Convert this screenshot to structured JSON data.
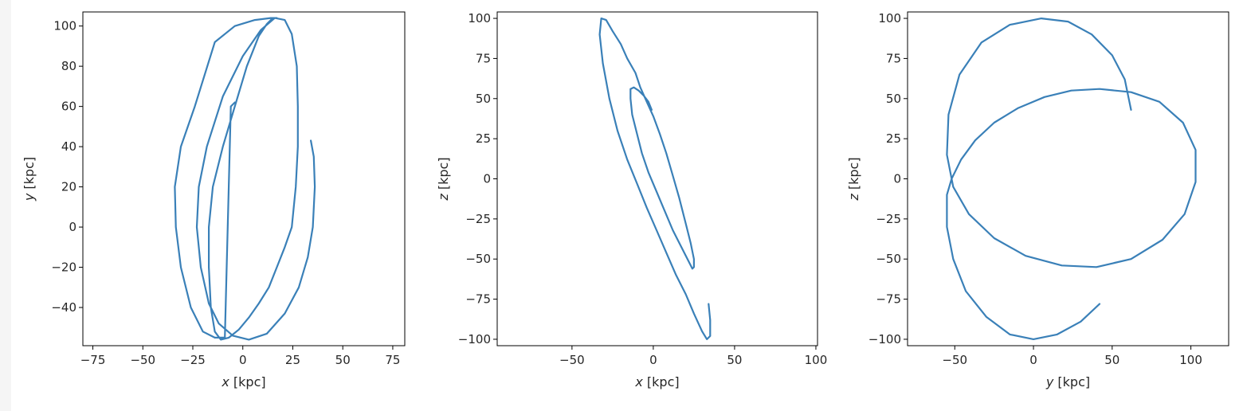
{
  "figure": {
    "chart_data": [
      {
        "type": "line",
        "id": "panel-xy",
        "xlabel_var": "x",
        "xlabel_unit": "[kpc]",
        "ylabel_var": "y",
        "ylabel_unit": "[kpc]",
        "xlim": [
          -80,
          81
        ],
        "ylim": [
          -59,
          107
        ],
        "xticks": [
          -75,
          -50,
          -25,
          0,
          25,
          50,
          75
        ],
        "yticks": [
          -40,
          -20,
          0,
          20,
          40,
          60,
          80,
          100
        ],
        "xtick_labels": [
          "−75",
          "−50",
          "−25",
          "0",
          "25",
          "50",
          "75"
        ],
        "ytick_labels": [
          "−40",
          "−20",
          "0",
          "20",
          "40",
          "60",
          "80",
          "100"
        ],
        "grid": false,
        "series": [
          {
            "color": "#3a80b8",
            "x": [
              34,
              35.5,
              36,
              35,
              32.5,
              28,
              21,
              12,
              3,
              -5,
              -12,
              -17,
              -21,
              -23,
              -22,
              -18,
              -10,
              0,
              9,
              16,
              21,
              24.5,
              27,
              27.5,
              27.5,
              26.5,
              24.5,
              21,
              17,
              13,
              8,
              3,
              -2,
              -7,
              -11,
              -14,
              -16,
              -17,
              -17,
              -15,
              -10,
              -4,
              2,
              8,
              12,
              15,
              17,
              14,
              6,
              -4,
              -14,
              -24,
              -31,
              -34,
              -33.5,
              -31,
              -26,
              -20,
              -14,
              -9,
              -6,
              -4
            ],
            "y": [
              43,
              35,
              20,
              0,
              -15,
              -30,
              -43,
              -53,
              -56,
              -54,
              -48,
              -38,
              -20,
              0,
              20,
              40,
              65,
              85,
              98,
              104,
              103,
              96,
              80,
              60,
              40,
              20,
              0,
              -10,
              -20,
              -30,
              -38,
              -45,
              -51,
              -55,
              -56,
              -52,
              -40,
              -20,
              0,
              20,
              40,
              60,
              80,
              95,
              101,
              104,
              104,
              104,
              103,
              100,
              92,
              60,
              40,
              20,
              0,
              -20,
              -40,
              -52,
              -55,
              -55,
              60,
              62
            ]
          }
        ]
      },
      {
        "type": "line",
        "id": "panel-xz",
        "xlabel_var": "x",
        "xlabel_unit": "[kpc]",
        "ylabel_var": "z",
        "ylabel_unit": "[kpc]",
        "xlim": [
          -96,
          101
        ],
        "ylim": [
          -104,
          104
        ],
        "xticks": [
          -50,
          0,
          50,
          100
        ],
        "yticks": [
          -100,
          -75,
          -50,
          -25,
          0,
          25,
          50,
          75,
          100
        ],
        "xtick_labels": [
          "−50",
          "0",
          "50",
          "100"
        ],
        "ytick_labels": [
          "−100",
          "−75",
          "−50",
          "−25",
          "0",
          "25",
          "50",
          "75",
          "100"
        ],
        "grid": false,
        "series": [
          {
            "color": "#3a80b8",
            "x": [
              34,
              35,
              35,
              33,
              30,
              25,
              20,
              14,
              8,
              2,
              -4,
              -10,
              -16,
              -22,
              -27,
              -31,
              -33,
              -32,
              -29,
              -25,
              -20,
              -16,
              -11,
              -8,
              -4,
              0,
              4,
              8,
              12,
              16,
              20,
              23,
              25,
              25,
              24,
              21,
              17,
              12,
              7,
              2,
              -3,
              -7,
              -10,
              -13,
              -14,
              -14,
              -12,
              -9,
              -6,
              -3,
              -1
            ],
            "y": [
              -78,
              -88,
              -98,
              -100,
              -95,
              -84,
              -72,
              -60,
              -46,
              -32,
              -18,
              -3,
              12,
              30,
              50,
              72,
              90,
              100,
              99,
              92,
              84,
              75,
              66,
              57,
              48,
              39,
              28,
              16,
              2,
              -12,
              -28,
              -40,
              -50,
              -55,
              -56,
              -50,
              -42,
              -32,
              -20,
              -8,
              4,
              16,
              28,
              40,
              50,
              56,
              57,
              55,
              52,
              48,
              43
            ]
          }
        ]
      },
      {
        "type": "line",
        "id": "panel-yz",
        "xlabel_var": "y",
        "xlabel_unit": "[kpc]",
        "ylabel_var": "z",
        "ylabel_unit": "[kpc]",
        "xlim": [
          -80,
          124
        ],
        "ylim": [
          -104,
          104
        ],
        "xticks": [
          -50,
          0,
          50,
          100
        ],
        "yticks": [
          -100,
          -75,
          -50,
          -25,
          0,
          25,
          50,
          75,
          100
        ],
        "xtick_labels": [
          "−50",
          "0",
          "50",
          "100"
        ],
        "ytick_labels": [
          "−100",
          "−75",
          "−50",
          "−25",
          "0",
          "25",
          "50",
          "75",
          "100"
        ],
        "grid": false,
        "series": [
          {
            "color": "#3a80b8",
            "x": [
              42,
              30,
              15,
              0,
              -15,
              -30,
              -43,
              -51,
              -55,
              -55,
              -52,
              -46,
              -37,
              -25,
              -10,
              7,
              24,
              42,
              62,
              80,
              95,
              103,
              103,
              96,
              82,
              62,
              40,
              18,
              -5,
              -25,
              -41,
              -51,
              -55,
              -54,
              -47,
              -33,
              -15,
              5,
              22,
              37,
              50,
              58,
              62
            ],
            "y": [
              -78,
              -89,
              -97,
              -100,
              -97,
              -86,
              -70,
              -50,
              -30,
              -10,
              0,
              12,
              24,
              35,
              44,
              51,
              55,
              56,
              54,
              48,
              35,
              18,
              -2,
              -22,
              -38,
              -50,
              -55,
              -54,
              -48,
              -37,
              -22,
              -5,
              15,
              40,
              65,
              85,
              96,
              100,
              98,
              90,
              77,
              62,
              43
            ]
          }
        ]
      }
    ]
  }
}
